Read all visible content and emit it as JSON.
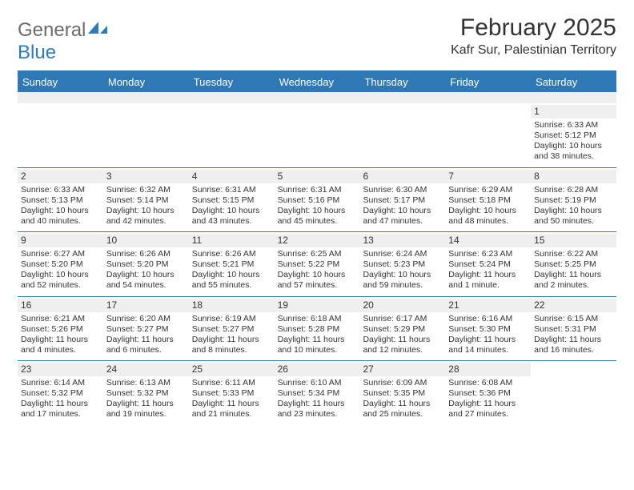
{
  "logo": {
    "general": "General",
    "blue": "Blue"
  },
  "title": "February 2025",
  "location": "Kafr Sur, Palestinian Territory",
  "colors": {
    "header_bar": "#2f78b6",
    "band": "#efefef",
    "text": "#333333",
    "logo_gray": "#6b6b6b",
    "logo_blue": "#2b7bbf"
  },
  "day_headers": [
    "Sunday",
    "Monday",
    "Tuesday",
    "Wednesday",
    "Thursday",
    "Friday",
    "Saturday"
  ],
  "weeks": [
    [
      {
        "num": "",
        "sunrise": "",
        "sunset": "",
        "daylight": ""
      },
      {
        "num": "",
        "sunrise": "",
        "sunset": "",
        "daylight": ""
      },
      {
        "num": "",
        "sunrise": "",
        "sunset": "",
        "daylight": ""
      },
      {
        "num": "",
        "sunrise": "",
        "sunset": "",
        "daylight": ""
      },
      {
        "num": "",
        "sunrise": "",
        "sunset": "",
        "daylight": ""
      },
      {
        "num": "",
        "sunrise": "",
        "sunset": "",
        "daylight": ""
      },
      {
        "num": "1",
        "sunrise": "Sunrise: 6:33 AM",
        "sunset": "Sunset: 5:12 PM",
        "daylight": "Daylight: 10 hours and 38 minutes."
      }
    ],
    [
      {
        "num": "2",
        "sunrise": "Sunrise: 6:33 AM",
        "sunset": "Sunset: 5:13 PM",
        "daylight": "Daylight: 10 hours and 40 minutes."
      },
      {
        "num": "3",
        "sunrise": "Sunrise: 6:32 AM",
        "sunset": "Sunset: 5:14 PM",
        "daylight": "Daylight: 10 hours and 42 minutes."
      },
      {
        "num": "4",
        "sunrise": "Sunrise: 6:31 AM",
        "sunset": "Sunset: 5:15 PM",
        "daylight": "Daylight: 10 hours and 43 minutes."
      },
      {
        "num": "5",
        "sunrise": "Sunrise: 6:31 AM",
        "sunset": "Sunset: 5:16 PM",
        "daylight": "Daylight: 10 hours and 45 minutes."
      },
      {
        "num": "6",
        "sunrise": "Sunrise: 6:30 AM",
        "sunset": "Sunset: 5:17 PM",
        "daylight": "Daylight: 10 hours and 47 minutes."
      },
      {
        "num": "7",
        "sunrise": "Sunrise: 6:29 AM",
        "sunset": "Sunset: 5:18 PM",
        "daylight": "Daylight: 10 hours and 48 minutes."
      },
      {
        "num": "8",
        "sunrise": "Sunrise: 6:28 AM",
        "sunset": "Sunset: 5:19 PM",
        "daylight": "Daylight: 10 hours and 50 minutes."
      }
    ],
    [
      {
        "num": "9",
        "sunrise": "Sunrise: 6:27 AM",
        "sunset": "Sunset: 5:20 PM",
        "daylight": "Daylight: 10 hours and 52 minutes."
      },
      {
        "num": "10",
        "sunrise": "Sunrise: 6:26 AM",
        "sunset": "Sunset: 5:20 PM",
        "daylight": "Daylight: 10 hours and 54 minutes."
      },
      {
        "num": "11",
        "sunrise": "Sunrise: 6:26 AM",
        "sunset": "Sunset: 5:21 PM",
        "daylight": "Daylight: 10 hours and 55 minutes."
      },
      {
        "num": "12",
        "sunrise": "Sunrise: 6:25 AM",
        "sunset": "Sunset: 5:22 PM",
        "daylight": "Daylight: 10 hours and 57 minutes."
      },
      {
        "num": "13",
        "sunrise": "Sunrise: 6:24 AM",
        "sunset": "Sunset: 5:23 PM",
        "daylight": "Daylight: 10 hours and 59 minutes."
      },
      {
        "num": "14",
        "sunrise": "Sunrise: 6:23 AM",
        "sunset": "Sunset: 5:24 PM",
        "daylight": "Daylight: 11 hours and 1 minute."
      },
      {
        "num": "15",
        "sunrise": "Sunrise: 6:22 AM",
        "sunset": "Sunset: 5:25 PM",
        "daylight": "Daylight: 11 hours and 2 minutes."
      }
    ],
    [
      {
        "num": "16",
        "sunrise": "Sunrise: 6:21 AM",
        "sunset": "Sunset: 5:26 PM",
        "daylight": "Daylight: 11 hours and 4 minutes."
      },
      {
        "num": "17",
        "sunrise": "Sunrise: 6:20 AM",
        "sunset": "Sunset: 5:27 PM",
        "daylight": "Daylight: 11 hours and 6 minutes."
      },
      {
        "num": "18",
        "sunrise": "Sunrise: 6:19 AM",
        "sunset": "Sunset: 5:27 PM",
        "daylight": "Daylight: 11 hours and 8 minutes."
      },
      {
        "num": "19",
        "sunrise": "Sunrise: 6:18 AM",
        "sunset": "Sunset: 5:28 PM",
        "daylight": "Daylight: 11 hours and 10 minutes."
      },
      {
        "num": "20",
        "sunrise": "Sunrise: 6:17 AM",
        "sunset": "Sunset: 5:29 PM",
        "daylight": "Daylight: 11 hours and 12 minutes."
      },
      {
        "num": "21",
        "sunrise": "Sunrise: 6:16 AM",
        "sunset": "Sunset: 5:30 PM",
        "daylight": "Daylight: 11 hours and 14 minutes."
      },
      {
        "num": "22",
        "sunrise": "Sunrise: 6:15 AM",
        "sunset": "Sunset: 5:31 PM",
        "daylight": "Daylight: 11 hours and 16 minutes."
      }
    ],
    [
      {
        "num": "23",
        "sunrise": "Sunrise: 6:14 AM",
        "sunset": "Sunset: 5:32 PM",
        "daylight": "Daylight: 11 hours and 17 minutes."
      },
      {
        "num": "24",
        "sunrise": "Sunrise: 6:13 AM",
        "sunset": "Sunset: 5:32 PM",
        "daylight": "Daylight: 11 hours and 19 minutes."
      },
      {
        "num": "25",
        "sunrise": "Sunrise: 6:11 AM",
        "sunset": "Sunset: 5:33 PM",
        "daylight": "Daylight: 11 hours and 21 minutes."
      },
      {
        "num": "26",
        "sunrise": "Sunrise: 6:10 AM",
        "sunset": "Sunset: 5:34 PM",
        "daylight": "Daylight: 11 hours and 23 minutes."
      },
      {
        "num": "27",
        "sunrise": "Sunrise: 6:09 AM",
        "sunset": "Sunset: 5:35 PM",
        "daylight": "Daylight: 11 hours and 25 minutes."
      },
      {
        "num": "28",
        "sunrise": "Sunrise: 6:08 AM",
        "sunset": "Sunset: 5:36 PM",
        "daylight": "Daylight: 11 hours and 27 minutes."
      },
      {
        "num": "",
        "sunrise": "",
        "sunset": "",
        "daylight": ""
      }
    ]
  ]
}
